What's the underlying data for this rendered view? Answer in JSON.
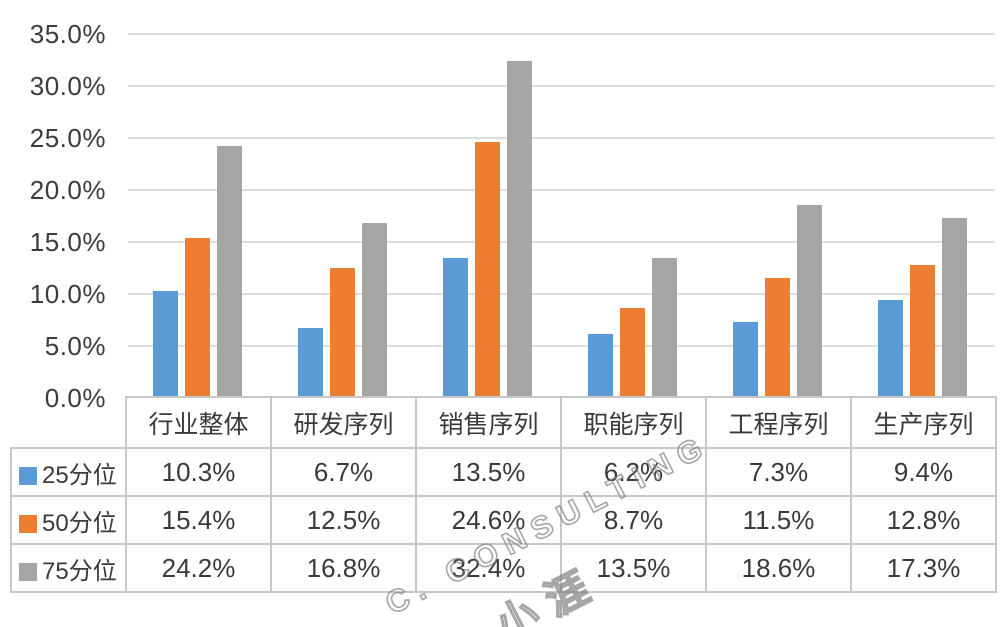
{
  "chart_data": {
    "type": "bar",
    "title": "",
    "categories": [
      "行业整体",
      "研发序列",
      "销售序列",
      "职能序列",
      "工程序列",
      "生产序列"
    ],
    "series": [
      {
        "name": "25分位",
        "color": "#5b9bd5",
        "values": [
          10.3,
          6.7,
          13.5,
          6.2,
          7.3,
          9.4
        ]
      },
      {
        "name": "50分位",
        "color": "#ed7d31",
        "values": [
          15.4,
          12.5,
          24.6,
          8.7,
          11.5,
          12.8
        ]
      },
      {
        "name": "75分位",
        "color": "#a5a5a5",
        "values": [
          24.2,
          16.8,
          32.4,
          13.5,
          18.6,
          17.3
        ]
      }
    ],
    "xlabel": "",
    "ylabel": "",
    "ylim": [
      0,
      35
    ],
    "ytick_step": 5,
    "ytick_labels": [
      "35.0%",
      "30.0%",
      "25.0%",
      "20.0%",
      "15.0%",
      "10.0%",
      "5.0%",
      "0.0%"
    ],
    "grid": true,
    "legend_position": "table-left-column"
  },
  "table": {
    "columns": [
      "行业整体",
      "研发序列",
      "销售序列",
      "职能序列",
      "工程序列",
      "生产序列"
    ],
    "rows": [
      {
        "label": "25分位",
        "swatch_color": "#5b9bd5",
        "values": [
          "10.3%",
          "6.7%",
          "13.5%",
          "6.2%",
          "7.3%",
          "9.4%"
        ]
      },
      {
        "label": "50分位",
        "swatch_color": "#ed7d31",
        "values": [
          "15.4%",
          "12.5%",
          "24.6%",
          "8.7%",
          "11.5%",
          "12.8%"
        ]
      },
      {
        "label": "75分位",
        "swatch_color": "#a5a5a5",
        "values": [
          "24.2%",
          "16.8%",
          "32.4%",
          "13.5%",
          "18.6%",
          "17.3%"
        ]
      }
    ]
  },
  "watermark": {
    "line1": "C. CONSULTING",
    "line2": "小涯"
  },
  "colors": {
    "series_blue": "#5b9bd5",
    "series_orange": "#ed7d31",
    "series_gray": "#a5a5a5",
    "gridline": "#dcdcdc",
    "table_border": "#c7c7c7",
    "text": "#3a3a3a",
    "background": "#ffffff",
    "watermark": "#808080"
  }
}
